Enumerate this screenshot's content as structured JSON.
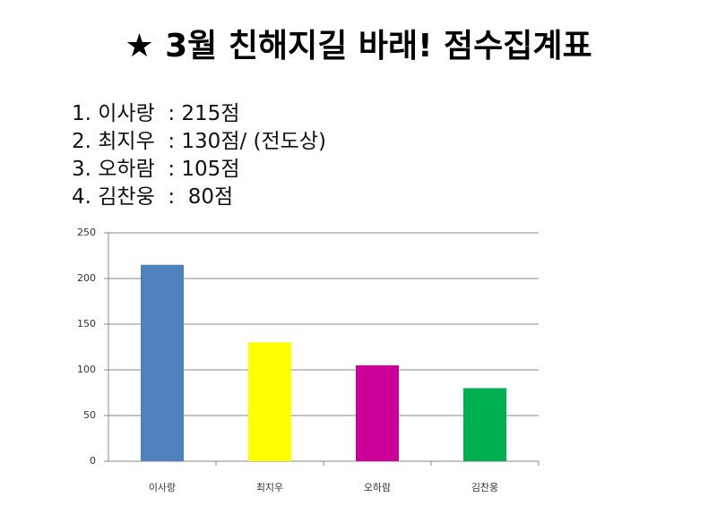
{
  "title": "★ 3월 친해지길 바래! 점수집계표",
  "list": [
    "1. 이사랑  : 215점",
    "2. 최지우  : 130점/ (전도상)",
    "3. 오하람  : 105점",
    "4. 김찬웅  :  80점"
  ],
  "chart_data": {
    "type": "bar",
    "categories": [
      "이사랑",
      "최지우",
      "오하람",
      "김찬웅"
    ],
    "values": [
      215,
      130,
      105,
      80
    ],
    "colors": [
      "#4f81bd",
      "#ffff00",
      "#cc0099",
      "#00b050"
    ],
    "ylim": [
      0,
      250
    ],
    "yticks": [
      0,
      50,
      100,
      150,
      200,
      250
    ],
    "grid": true
  }
}
